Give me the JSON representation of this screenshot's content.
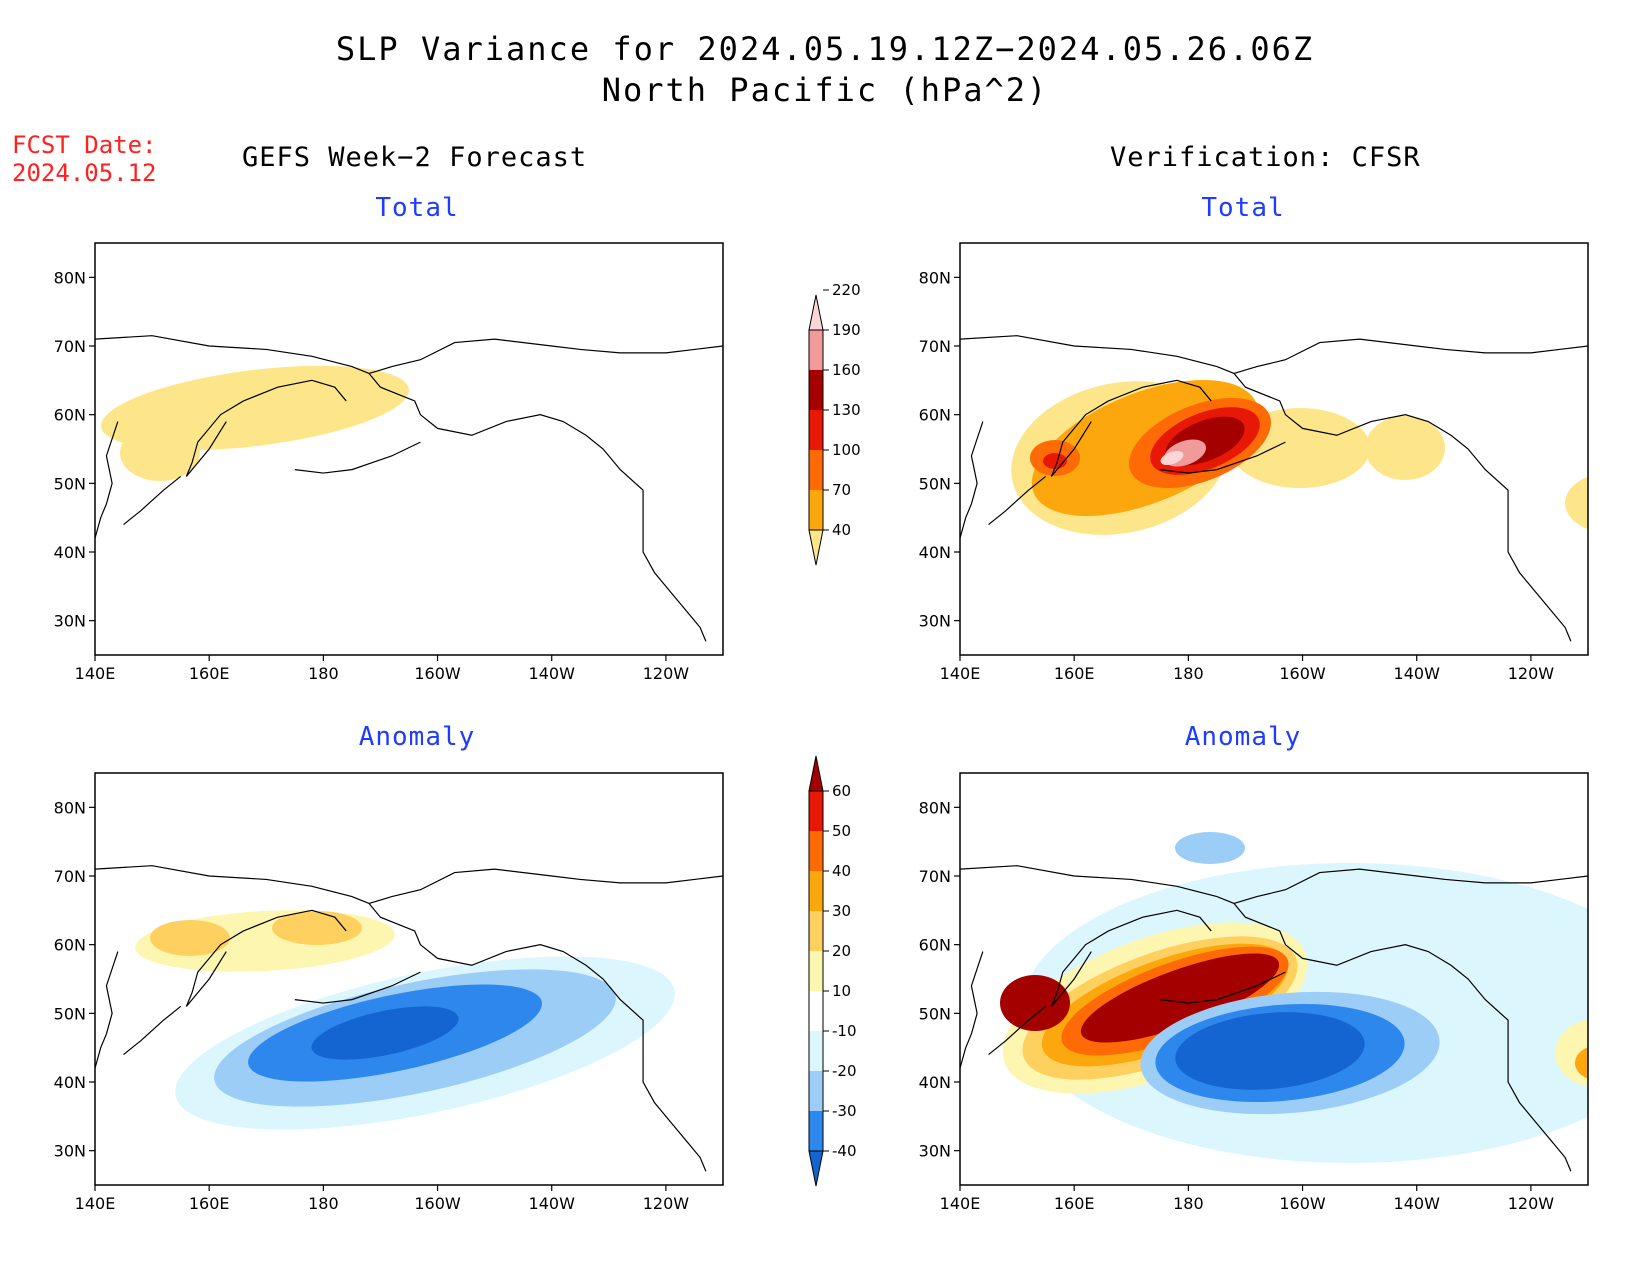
{
  "title": {
    "line1": "SLP Variance for 2024.05.19.12Z−2024.05.26.06Z",
    "line2": "North Pacific (hPa^2)"
  },
  "fcst": {
    "label": "FCST Date:",
    "date": "2024.05.12"
  },
  "columns": {
    "left": "GEFS Week−2 Forecast",
    "right": "Verification: CFSR"
  },
  "panel_labels": {
    "total": "Total",
    "anomaly": "Anomaly"
  },
  "axes": {
    "lat_ticks": [
      "80N",
      "70N",
      "60N",
      "50N",
      "40N",
      "30N"
    ],
    "lon_ticks": [
      "140E",
      "160E",
      "180",
      "160W",
      "140W",
      "120W"
    ]
  },
  "colorbars": {
    "total": {
      "levels": [
        "40",
        "70",
        "100",
        "130",
        "160",
        "190",
        "220"
      ],
      "colors": [
        "#fde68a",
        "#fca70e",
        "#fe6a05",
        "#e81806",
        "#a40000",
        "#f09a9a",
        "#fbd6d6"
      ]
    },
    "anomaly": {
      "levels": [
        "-40",
        "-30",
        "-20",
        "-10",
        "10",
        "20",
        "30",
        "40",
        "50",
        "60"
      ],
      "colors": [
        "#1464d2",
        "#2d87ec",
        "#9bcdf7",
        "#dbf6fd",
        "#ffffff",
        "#fdf6b0",
        "#fed060",
        "#fca70e",
        "#fe6a05",
        "#e81806",
        "#a40000"
      ]
    }
  }
}
